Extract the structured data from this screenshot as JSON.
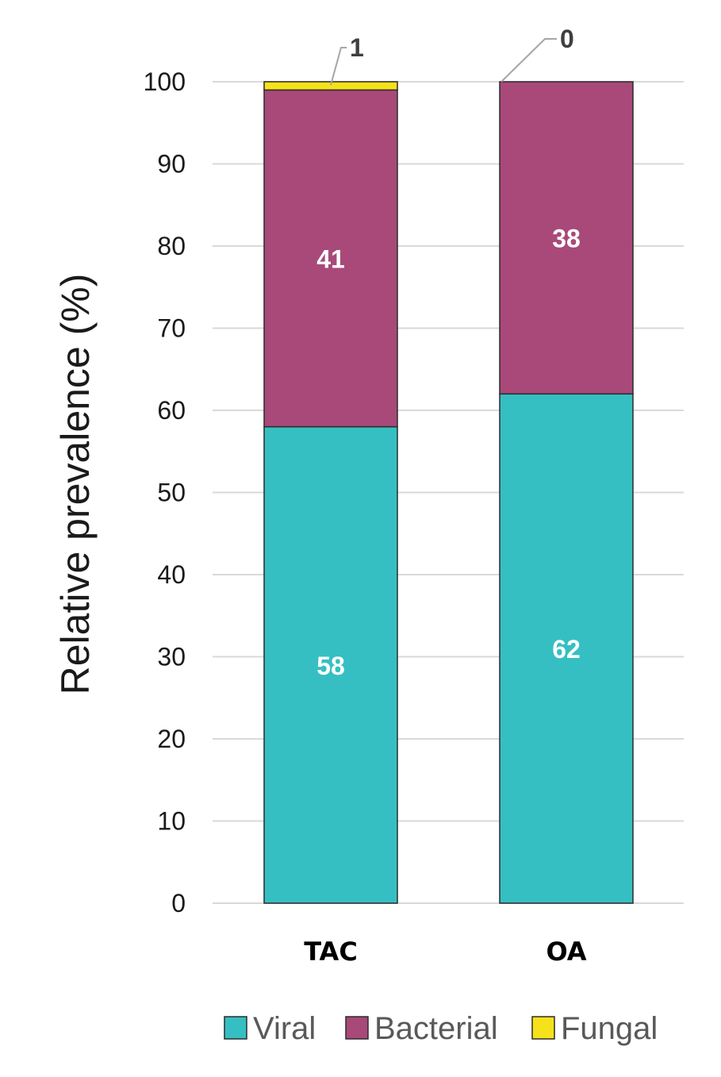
{
  "chart_data": {
    "type": "bar",
    "stacked": true,
    "title": "",
    "xlabel": "",
    "ylabel": "Relative prevalence (%)",
    "ylim": [
      0,
      100
    ],
    "yticks": [
      "0",
      "10",
      "20",
      "30",
      "40",
      "50",
      "60",
      "70",
      "80",
      "90",
      "100"
    ],
    "categories": [
      "TAC",
      "OA"
    ],
    "series": [
      {
        "name": "Viral",
        "values": [
          58,
          62
        ],
        "labels": [
          "58",
          "62"
        ],
        "color": "#36BFC2"
      },
      {
        "name": "Bacterial",
        "values": [
          41,
          38
        ],
        "labels": [
          "41",
          "38"
        ],
        "color": "#A8497A"
      },
      {
        "name": "Fungal",
        "values": [
          1,
          0
        ],
        "labels": [
          "1",
          "0"
        ],
        "color": "#F6E21A"
      }
    ],
    "grid": true,
    "legend_position": "bottom"
  }
}
